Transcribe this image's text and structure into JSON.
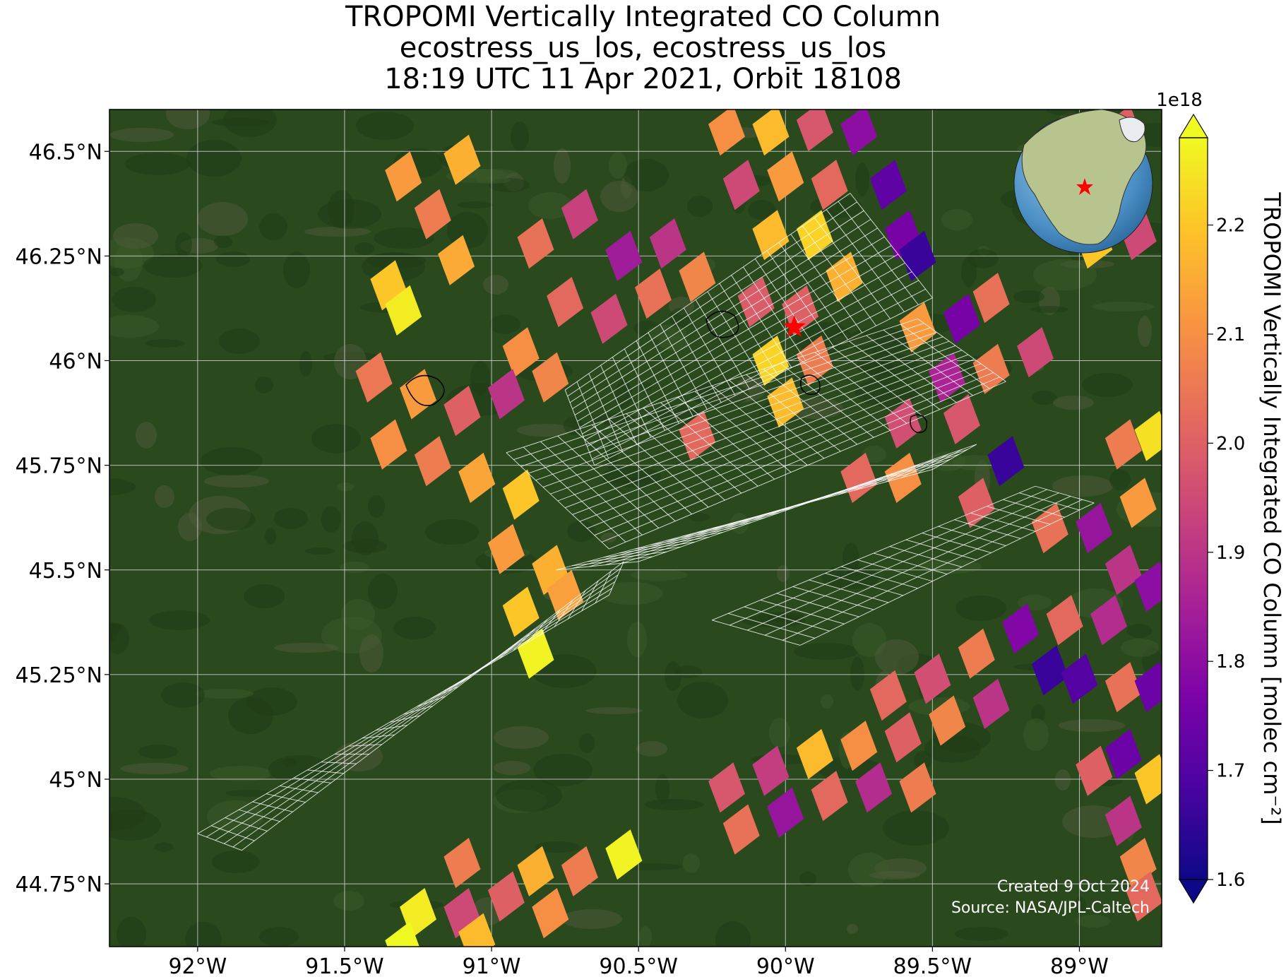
{
  "title": {
    "line1": "TROPOMI Vertically Integrated CO Column",
    "line2": "ecostress_us_los, ecostress_us_los",
    "line3": "18:19 UTC 11 Apr 2021, Orbit 18108"
  },
  "map": {
    "lon_range": [
      -92.3,
      -88.72
    ],
    "lat_range": [
      44.6,
      46.6
    ],
    "lon_ticks": [
      {
        "value": -92.0,
        "label": "92°W"
      },
      {
        "value": -91.5,
        "label": "91.5°W"
      },
      {
        "value": -91.0,
        "label": "91°W"
      },
      {
        "value": -90.5,
        "label": "90.5°W"
      },
      {
        "value": -90.0,
        "label": "90°W"
      },
      {
        "value": -89.5,
        "label": "89.5°W"
      },
      {
        "value": -89.0,
        "label": "89°W"
      }
    ],
    "lat_ticks": [
      {
        "value": 46.5,
        "label": "46.5°N"
      },
      {
        "value": 46.25,
        "label": "46.25°N"
      },
      {
        "value": 46.0,
        "label": "46°N"
      },
      {
        "value": 45.75,
        "label": "45.75°N"
      },
      {
        "value": 45.5,
        "label": "45.5°N"
      },
      {
        "value": 45.25,
        "label": "45.25°N"
      },
      {
        "value": 45.0,
        "label": "45°N"
      },
      {
        "value": 44.75,
        "label": "44.75°N"
      }
    ],
    "background_color": "#2a4a1e",
    "site_marker": {
      "lon": -89.97,
      "lat": 46.08,
      "color": "#ff0000"
    },
    "credit_line1": "Created 9 Oct 2024",
    "credit_line2": "Source: NASA/JPL-Caltech"
  },
  "colorbar": {
    "label": "TROPOMI Vertically Integrated CO Column [molec cm⁻²]",
    "exponent": "1e18",
    "min": 1.6,
    "max": 2.28,
    "cmap": "plasma",
    "ticks": [
      {
        "value": 1.6,
        "label": "1.6"
      },
      {
        "value": 1.7,
        "label": "1.7"
      },
      {
        "value": 1.8,
        "label": "1.8"
      },
      {
        "value": 1.9,
        "label": "1.9"
      },
      {
        "value": 2.0,
        "label": "2.0"
      },
      {
        "value": 2.1,
        "label": "2.1"
      },
      {
        "value": 2.2,
        "label": "2.2"
      }
    ]
  },
  "tropomi_pixels": [
    {
      "lon": -91.3,
      "lat": 46.44,
      "v": 2.12
    },
    {
      "lon": -91.1,
      "lat": 46.48,
      "v": 2.16
    },
    {
      "lon": -91.2,
      "lat": 46.35,
      "v": 2.06
    },
    {
      "lon": -91.35,
      "lat": 46.18,
      "v": 2.2
    },
    {
      "lon": -91.3,
      "lat": 46.12,
      "v": 2.26
    },
    {
      "lon": -91.12,
      "lat": 46.24,
      "v": 2.15
    },
    {
      "lon": -90.85,
      "lat": 46.28,
      "v": 2.04
    },
    {
      "lon": -90.7,
      "lat": 46.35,
      "v": 1.93
    },
    {
      "lon": -90.55,
      "lat": 46.25,
      "v": 1.84
    },
    {
      "lon": -90.4,
      "lat": 46.28,
      "v": 1.9
    },
    {
      "lon": -90.75,
      "lat": 46.14,
      "v": 2.02
    },
    {
      "lon": -90.6,
      "lat": 46.1,
      "v": 1.95
    },
    {
      "lon": -90.45,
      "lat": 46.16,
      "v": 2.04
    },
    {
      "lon": -90.3,
      "lat": 46.2,
      "v": 2.08
    },
    {
      "lon": -90.9,
      "lat": 46.02,
      "v": 2.1
    },
    {
      "lon": -91.4,
      "lat": 45.96,
      "v": 2.05
    },
    {
      "lon": -91.25,
      "lat": 45.92,
      "v": 2.12
    },
    {
      "lon": -91.1,
      "lat": 45.88,
      "v": 2.0
    },
    {
      "lon": -90.95,
      "lat": 45.92,
      "v": 1.9
    },
    {
      "lon": -90.8,
      "lat": 45.96,
      "v": 2.08
    },
    {
      "lon": -91.35,
      "lat": 45.8,
      "v": 2.1
    },
    {
      "lon": -91.2,
      "lat": 45.76,
      "v": 2.06
    },
    {
      "lon": -91.05,
      "lat": 45.72,
      "v": 2.14
    },
    {
      "lon": -90.9,
      "lat": 45.68,
      "v": 2.2
    },
    {
      "lon": -90.95,
      "lat": 45.55,
      "v": 2.12
    },
    {
      "lon": -90.8,
      "lat": 45.5,
      "v": 2.16
    },
    {
      "lon": -90.9,
      "lat": 45.4,
      "v": 2.2
    },
    {
      "lon": -90.75,
      "lat": 45.44,
      "v": 2.13
    },
    {
      "lon": -90.85,
      "lat": 45.3,
      "v": 2.27
    },
    {
      "lon": -90.2,
      "lat": 46.55,
      "v": 2.1
    },
    {
      "lon": -90.05,
      "lat": 46.55,
      "v": 2.18
    },
    {
      "lon": -89.9,
      "lat": 46.56,
      "v": 1.98
    },
    {
      "lon": -89.75,
      "lat": 46.55,
      "v": 1.8
    },
    {
      "lon": -90.15,
      "lat": 46.42,
      "v": 1.95
    },
    {
      "lon": -90.0,
      "lat": 46.44,
      "v": 2.12
    },
    {
      "lon": -89.85,
      "lat": 46.42,
      "v": 2.02
    },
    {
      "lon": -89.65,
      "lat": 46.42,
      "v": 1.72
    },
    {
      "lon": -90.05,
      "lat": 46.3,
      "v": 2.18
    },
    {
      "lon": -89.9,
      "lat": 46.3,
      "v": 2.22
    },
    {
      "lon": -89.6,
      "lat": 46.3,
      "v": 1.76
    },
    {
      "lon": -89.55,
      "lat": 46.25,
      "v": 1.66
    },
    {
      "lon": -90.1,
      "lat": 46.14,
      "v": 1.99
    },
    {
      "lon": -89.95,
      "lat": 46.12,
      "v": 2.0
    },
    {
      "lon": -89.8,
      "lat": 46.2,
      "v": 2.16
    },
    {
      "lon": -90.05,
      "lat": 46.0,
      "v": 2.22
    },
    {
      "lon": -89.9,
      "lat": 46.0,
      "v": 2.06
    },
    {
      "lon": -89.55,
      "lat": 46.08,
      "v": 2.12
    },
    {
      "lon": -89.4,
      "lat": 46.1,
      "v": 1.76
    },
    {
      "lon": -89.3,
      "lat": 46.15,
      "v": 2.04
    },
    {
      "lon": -89.45,
      "lat": 45.96,
      "v": 1.86
    },
    {
      "lon": -89.3,
      "lat": 45.98,
      "v": 2.06
    },
    {
      "lon": -89.15,
      "lat": 46.02,
      "v": 1.95
    },
    {
      "lon": -89.4,
      "lat": 45.86,
      "v": 1.98
    },
    {
      "lon": -89.25,
      "lat": 45.76,
      "v": 1.66
    },
    {
      "lon": -89.35,
      "lat": 45.66,
      "v": 2.0
    },
    {
      "lon": -89.6,
      "lat": 45.72,
      "v": 2.1
    },
    {
      "lon": -89.75,
      "lat": 45.72,
      "v": 2.02
    },
    {
      "lon": -88.85,
      "lat": 46.55,
      "v": 2.0
    },
    {
      "lon": -88.8,
      "lat": 46.3,
      "v": 1.95
    },
    {
      "lon": -88.95,
      "lat": 46.28,
      "v": 2.2
    },
    {
      "lon": -88.85,
      "lat": 45.8,
      "v": 2.06
    },
    {
      "lon": -88.75,
      "lat": 45.82,
      "v": 2.24
    },
    {
      "lon": -88.8,
      "lat": 45.66,
      "v": 2.12
    },
    {
      "lon": -88.95,
      "lat": 45.6,
      "v": 1.82
    },
    {
      "lon": -89.1,
      "lat": 45.6,
      "v": 2.04
    },
    {
      "lon": -88.85,
      "lat": 45.5,
      "v": 1.9
    },
    {
      "lon": -88.75,
      "lat": 45.46,
      "v": 1.8
    },
    {
      "lon": -88.9,
      "lat": 45.38,
      "v": 1.88
    },
    {
      "lon": -89.05,
      "lat": 45.38,
      "v": 2.02
    },
    {
      "lon": -89.2,
      "lat": 45.36,
      "v": 1.78
    },
    {
      "lon": -89.1,
      "lat": 45.26,
      "v": 1.66
    },
    {
      "lon": -89.0,
      "lat": 45.24,
      "v": 1.7
    },
    {
      "lon": -88.85,
      "lat": 45.22,
      "v": 2.04
    },
    {
      "lon": -88.75,
      "lat": 45.22,
      "v": 1.74
    },
    {
      "lon": -89.35,
      "lat": 45.3,
      "v": 2.06
    },
    {
      "lon": -89.5,
      "lat": 45.24,
      "v": 1.96
    },
    {
      "lon": -89.65,
      "lat": 45.2,
      "v": 2.02
    },
    {
      "lon": -89.3,
      "lat": 45.18,
      "v": 1.9
    },
    {
      "lon": -89.45,
      "lat": 45.14,
      "v": 2.08
    },
    {
      "lon": -89.6,
      "lat": 45.1,
      "v": 2.0
    },
    {
      "lon": -89.75,
      "lat": 45.08,
      "v": 2.1
    },
    {
      "lon": -89.9,
      "lat": 45.06,
      "v": 2.18
    },
    {
      "lon": -90.05,
      "lat": 45.02,
      "v": 1.92
    },
    {
      "lon": -90.2,
      "lat": 44.98,
      "v": 1.98
    },
    {
      "lon": -89.55,
      "lat": 44.98,
      "v": 2.06
    },
    {
      "lon": -89.7,
      "lat": 44.98,
      "v": 1.88
    },
    {
      "lon": -89.85,
      "lat": 44.96,
      "v": 2.02
    },
    {
      "lon": -90.0,
      "lat": 44.92,
      "v": 1.82
    },
    {
      "lon": -90.15,
      "lat": 44.88,
      "v": 2.04
    },
    {
      "lon": -88.95,
      "lat": 45.02,
      "v": 2.0
    },
    {
      "lon": -88.85,
      "lat": 45.06,
      "v": 1.74
    },
    {
      "lon": -88.75,
      "lat": 45.0,
      "v": 2.2
    },
    {
      "lon": -88.85,
      "lat": 44.9,
      "v": 1.9
    },
    {
      "lon": -88.8,
      "lat": 44.8,
      "v": 2.08
    },
    {
      "lon": -88.78,
      "lat": 44.72,
      "v": 2.02
    },
    {
      "lon": -91.1,
      "lat": 44.8,
      "v": 2.06
    },
    {
      "lon": -90.55,
      "lat": 44.82,
      "v": 2.27
    },
    {
      "lon": -90.7,
      "lat": 44.78,
      "v": 2.06
    },
    {
      "lon": -90.85,
      "lat": 44.78,
      "v": 2.16
    },
    {
      "lon": -90.95,
      "lat": 44.72,
      "v": 2.0
    },
    {
      "lon": -91.1,
      "lat": 44.68,
      "v": 1.95
    },
    {
      "lon": -90.8,
      "lat": 44.68,
      "v": 2.1
    },
    {
      "lon": -91.25,
      "lat": 44.68,
      "v": 2.26
    },
    {
      "lon": -91.05,
      "lat": 44.62,
      "v": 2.18
    },
    {
      "lon": -91.3,
      "lat": 44.6,
      "v": 2.28
    },
    {
      "lon": -89.6,
      "lat": 45.85,
      "v": 1.96
    },
    {
      "lon": -90.0,
      "lat": 45.9,
      "v": 2.18
    },
    {
      "lon": -90.3,
      "lat": 45.82,
      "v": 2.02
    }
  ],
  "ecostress_grids": [
    {
      "corners": [
        [
          -92.0,
          44.87
        ],
        [
          -91.85,
          44.83
        ],
        [
          -90.55,
          45.52
        ],
        [
          -90.6,
          45.44
        ]
      ],
      "nu": 30,
      "nv": 5
    },
    {
      "corners": [
        [
          -90.78,
          45.5
        ],
        [
          -90.5,
          45.52
        ],
        [
          -89.35,
          45.8
        ],
        [
          -89.5,
          45.74
        ]
      ],
      "nu": 24,
      "nv": 5
    },
    {
      "corners": [
        [
          -90.95,
          45.78
        ],
        [
          -90.6,
          45.55
        ],
        [
          -89.25,
          45.95
        ],
        [
          -89.55,
          46.1
        ]
      ],
      "nu": 24,
      "nv": 14
    },
    {
      "corners": [
        [
          -90.75,
          45.93
        ],
        [
          -90.65,
          45.75
        ],
        [
          -89.5,
          46.15
        ],
        [
          -89.78,
          46.4
        ]
      ],
      "nu": 24,
      "nv": 12
    },
    {
      "corners": [
        [
          -90.25,
          45.38
        ],
        [
          -89.95,
          45.32
        ],
        [
          -88.95,
          45.66
        ],
        [
          -89.15,
          45.7
        ]
      ],
      "nu": 20,
      "nv": 5
    }
  ]
}
